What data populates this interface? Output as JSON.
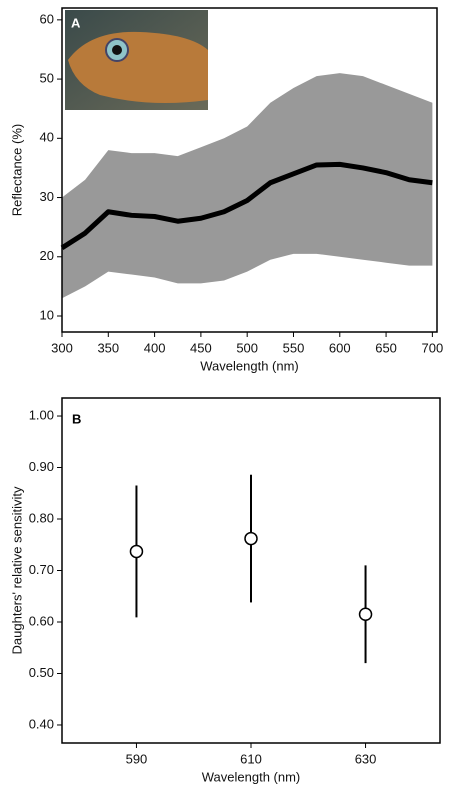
{
  "chart_data": [
    {
      "type": "line",
      "panel_label": "A",
      "xlabel": "Wavelength (nm)",
      "ylabel": "Reflectance (%)",
      "x": [
        300,
        325,
        350,
        375,
        400,
        425,
        450,
        475,
        500,
        525,
        550,
        575,
        600,
        625,
        650,
        675,
        700
      ],
      "values": [
        21.5,
        24,
        27.6,
        27,
        26.8,
        26,
        26.5,
        27.6,
        29.5,
        32.5,
        34,
        35.5,
        35.6,
        35,
        34.2,
        33,
        32.5
      ],
      "band_upper": [
        30,
        33,
        38,
        37.5,
        37.5,
        37,
        38.5,
        40,
        42,
        46,
        48.5,
        50.5,
        51,
        50.5,
        49,
        47.5,
        46
      ],
      "band_lower": [
        13,
        15,
        17.5,
        17,
        16.5,
        15.5,
        15.5,
        16,
        17.5,
        19.5,
        20.5,
        20.5,
        20,
        19.5,
        19,
        18.5,
        18.5
      ],
      "color": "#000000",
      "band_color": "#999999",
      "xlim": [
        300,
        705
      ],
      "xticks": [
        300,
        350,
        400,
        450,
        500,
        550,
        600,
        650,
        700
      ],
      "ylim": [
        7.3,
        62
      ],
      "yticks": [
        10,
        20,
        30,
        40,
        50,
        60
      ]
    },
    {
      "type": "scatter",
      "panel_label": "B",
      "xlabel": "Wavelength (nm)",
      "ylabel": "Daughters' relative sensitivity",
      "x": [
        590,
        610,
        630
      ],
      "values": [
        0.737,
        0.762,
        0.615
      ],
      "errors": [
        0.128,
        0.124,
        0.095
      ],
      "color": "#000000",
      "xlim": [
        577,
        643
      ],
      "xticks": [
        590,
        610,
        630
      ],
      "ylim": [
        0.365,
        1.035
      ],
      "yticks": [
        {
          "value": 0.4,
          "label": "0.40"
        },
        {
          "value": 0.5,
          "label": "0.50"
        },
        {
          "value": 0.6,
          "label": "0.60"
        },
        {
          "value": 0.7,
          "label": "0.70"
        },
        {
          "value": 0.8,
          "label": "0.80"
        },
        {
          "value": 0.9,
          "label": "0.90"
        },
        {
          "value": 1.0,
          "label": "1.00"
        }
      ]
    }
  ]
}
